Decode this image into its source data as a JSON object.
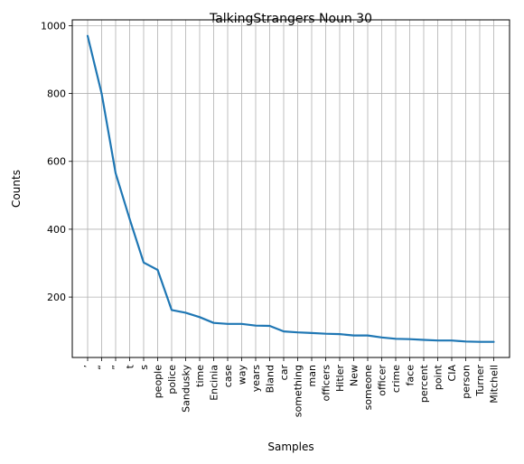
{
  "chart_data": {
    "type": "line",
    "title": "TalkingStrangers Noun 30",
    "xlabel": "Samples",
    "ylabel": "Counts",
    "categories": [
      "’",
      "“",
      "”",
      "t",
      "s",
      "people",
      "police",
      "Sandusky",
      "time",
      "Encinia",
      "case",
      "way",
      "years",
      "Bland",
      "car",
      "something",
      "man",
      "officers",
      "Hitler",
      "New",
      "someone",
      "officer",
      "crime",
      "face",
      "percent",
      "point",
      "CIA",
      "person",
      "Turner",
      "Mitchell"
    ],
    "values": [
      970,
      800,
      565,
      430,
      302,
      280,
      162,
      154,
      141,
      124,
      121,
      121,
      116,
      115,
      99,
      96,
      94,
      92,
      91,
      87,
      87,
      81,
      77,
      76,
      74,
      72,
      72,
      69,
      68,
      68
    ],
    "ylim": [
      22,
      1017
    ],
    "yticks": [
      200,
      400,
      600,
      800,
      1000
    ],
    "grid": true,
    "colors": {
      "line": "#1f77b4",
      "grid": "#b0b0b0",
      "axis": "#000000"
    }
  }
}
